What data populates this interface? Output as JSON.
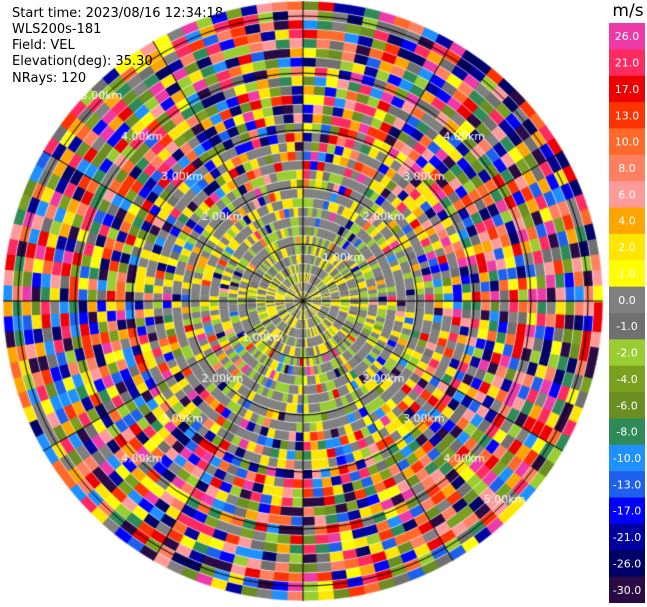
{
  "header": {
    "start_time_label": "Start time:",
    "start_time_value": "2023/08/16 12:34:18",
    "instrument": "WLS200s-181",
    "field_label": "Field:",
    "field_value": "VEL",
    "elevation_label": "Elevation(deg):",
    "elevation_value": "35.30",
    "nrays_label": "NRays:",
    "nrays_value": "120"
  },
  "chart_data": {
    "type": "heatmap",
    "projection": "polar-ppi",
    "field": "VEL",
    "units": "m/s",
    "n_rays": 120,
    "n_gates": 32,
    "range_ring_labels": [
      "1.00km",
      "1.00km",
      "2.00km",
      "2.00km",
      "2.00km",
      "2.00km",
      "3.00km",
      "3.00km",
      "3.00km",
      "3.00km",
      "4.00km",
      "4.00km",
      "4.00km",
      "4.00km",
      "5.00km",
      "5.00km"
    ],
    "colorbar": {
      "title": "m/s",
      "ticks": [
        "26.0",
        "21.0",
        "17.0",
        "13.0",
        "10.0",
        "8.0",
        "6.0",
        "4.0",
        "2.0",
        "1.0",
        "0.0",
        "-1.0",
        "-2.0",
        "-4.0",
        "-6.0",
        "-8.0",
        "-10.0",
        "-13.0",
        "-17.0",
        "-21.0",
        "-26.0",
        "-30.0"
      ],
      "colors": [
        "#ee3aa8",
        "#ff2b60",
        "#ee0000",
        "#ff3300",
        "#ff6a2a",
        "#ff8060",
        "#ff9a9a",
        "#ffa500",
        "#ffe600",
        "#ffff00",
        "#808080",
        "#707070",
        "#9acd32",
        "#7aa020",
        "#6b8e23",
        "#2e8b57",
        "#1e90ff",
        "#1e60ee",
        "#0000ff",
        "#0000a0",
        "#000066",
        "#2a0a44"
      ]
    }
  }
}
